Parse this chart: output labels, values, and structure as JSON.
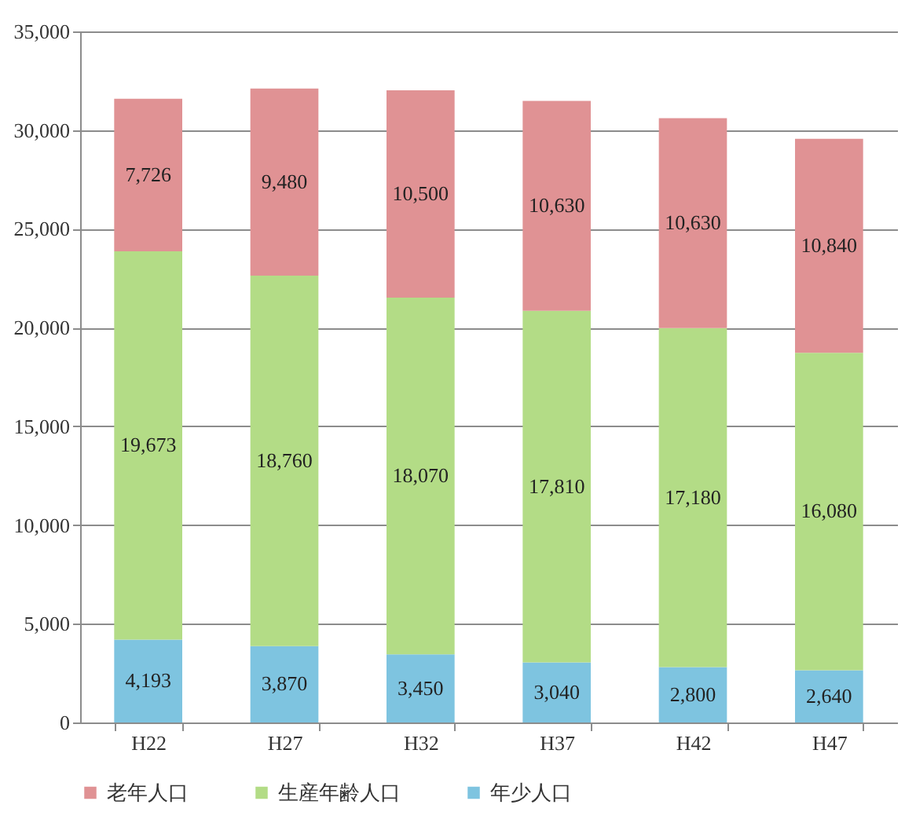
{
  "chart_data": {
    "type": "bar",
    "stacked": true,
    "categories": [
      "H22",
      "H27",
      "H32",
      "H37",
      "H42",
      "H47"
    ],
    "series": [
      {
        "name": "年少人口",
        "color": "#7ec4e0",
        "values": [
          4193,
          3870,
          3450,
          3040,
          2800,
          2640
        ],
        "value_labels": [
          "4,193",
          "3,870",
          "3,450",
          "3,040",
          "2,800",
          "2,640"
        ]
      },
      {
        "name": "生産年齢人口",
        "color": "#b3dc86",
        "values": [
          19673,
          18760,
          18070,
          17810,
          17180,
          16080
        ],
        "value_labels": [
          "19,673",
          "18,760",
          "18,070",
          "17,810",
          "17,180",
          "16,080"
        ]
      },
      {
        "name": "老年人口",
        "color": "#e09294",
        "values": [
          7726,
          9480,
          10500,
          10630,
          10630,
          10840
        ],
        "value_labels": [
          "7,726",
          "9,480",
          "10,500",
          "10,630",
          "10,630",
          "10,840"
        ]
      }
    ],
    "ylim": [
      0,
      35000
    ],
    "yticks": [
      {
        "value": 0,
        "label": "0"
      },
      {
        "value": 5000,
        "label": "5,000"
      },
      {
        "value": 10000,
        "label": "10,000"
      },
      {
        "value": 15000,
        "label": "15,000"
      },
      {
        "value": 20000,
        "label": "20,000"
      },
      {
        "value": 25000,
        "label": "25,000"
      },
      {
        "value": 30000,
        "label": "30,000"
      },
      {
        "value": 35000,
        "label": "35,000"
      }
    ],
    "grid": "y",
    "legend": "bottom"
  }
}
